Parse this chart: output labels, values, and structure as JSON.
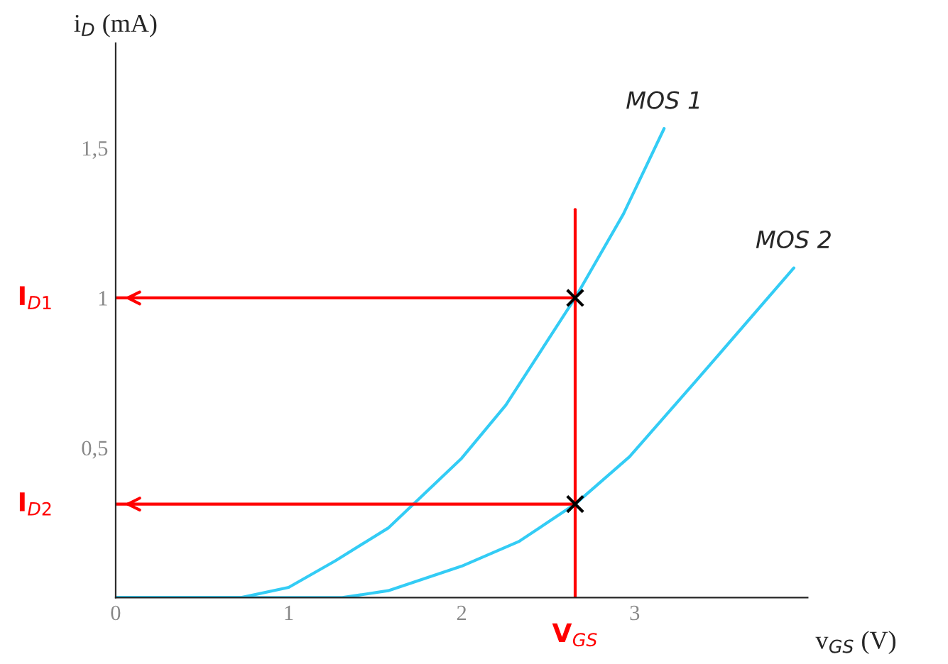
{
  "chart_data": {
    "type": "line",
    "xlabel": "v$_{GS}$ (V)",
    "ylabel": "i$_{D}$ (mA)",
    "xlim": [
      0,
      4.0
    ],
    "ylim": [
      0,
      1.85
    ],
    "xticks": [
      0,
      1,
      2,
      3
    ],
    "yticks": [
      {
        "value": 0.5,
        "label": "0,5"
      },
      1,
      {
        "value": 1.5,
        "label": "1,5"
      }
    ],
    "series": [
      {
        "name": "MOS 1",
        "color": "#33ccf5",
        "x": [
          0,
          0.725,
          1.0,
          1.27,
          1.575,
          2.0,
          2.255,
          2.656,
          2.935,
          3.17
        ],
        "values": [
          0,
          0,
          0.034,
          0.123,
          0.232,
          0.465,
          0.642,
          1.0,
          1.28,
          1.565
        ]
      },
      {
        "name": "MOS 2",
        "color": "#33ccf5",
        "x": [
          0,
          1.31,
          1.575,
          2.0,
          2.33,
          2.656,
          2.97,
          3.35,
          3.92
        ],
        "values": [
          0,
          0,
          0.023,
          0.105,
          0.187,
          0.312,
          0.47,
          0.72,
          1.1
        ]
      },
      {
        "type": "scatter",
        "marker": "cross",
        "color": "#000000",
        "x": [
          2.656,
          2.656
        ],
        "values": [
          1.0,
          0.312
        ]
      }
    ],
    "ref_lines": [
      {
        "axis": "x",
        "value": 2.656,
        "label": "V$_{GS}$",
        "color": "#ff0000"
      },
      {
        "axis": "y",
        "value": 1.0,
        "label": "I$_{D1}$",
        "color": "#ff0000"
      },
      {
        "axis": "y",
        "value": 0.312,
        "label": "I$_{D2}$",
        "color": "#ff0000"
      }
    ]
  }
}
